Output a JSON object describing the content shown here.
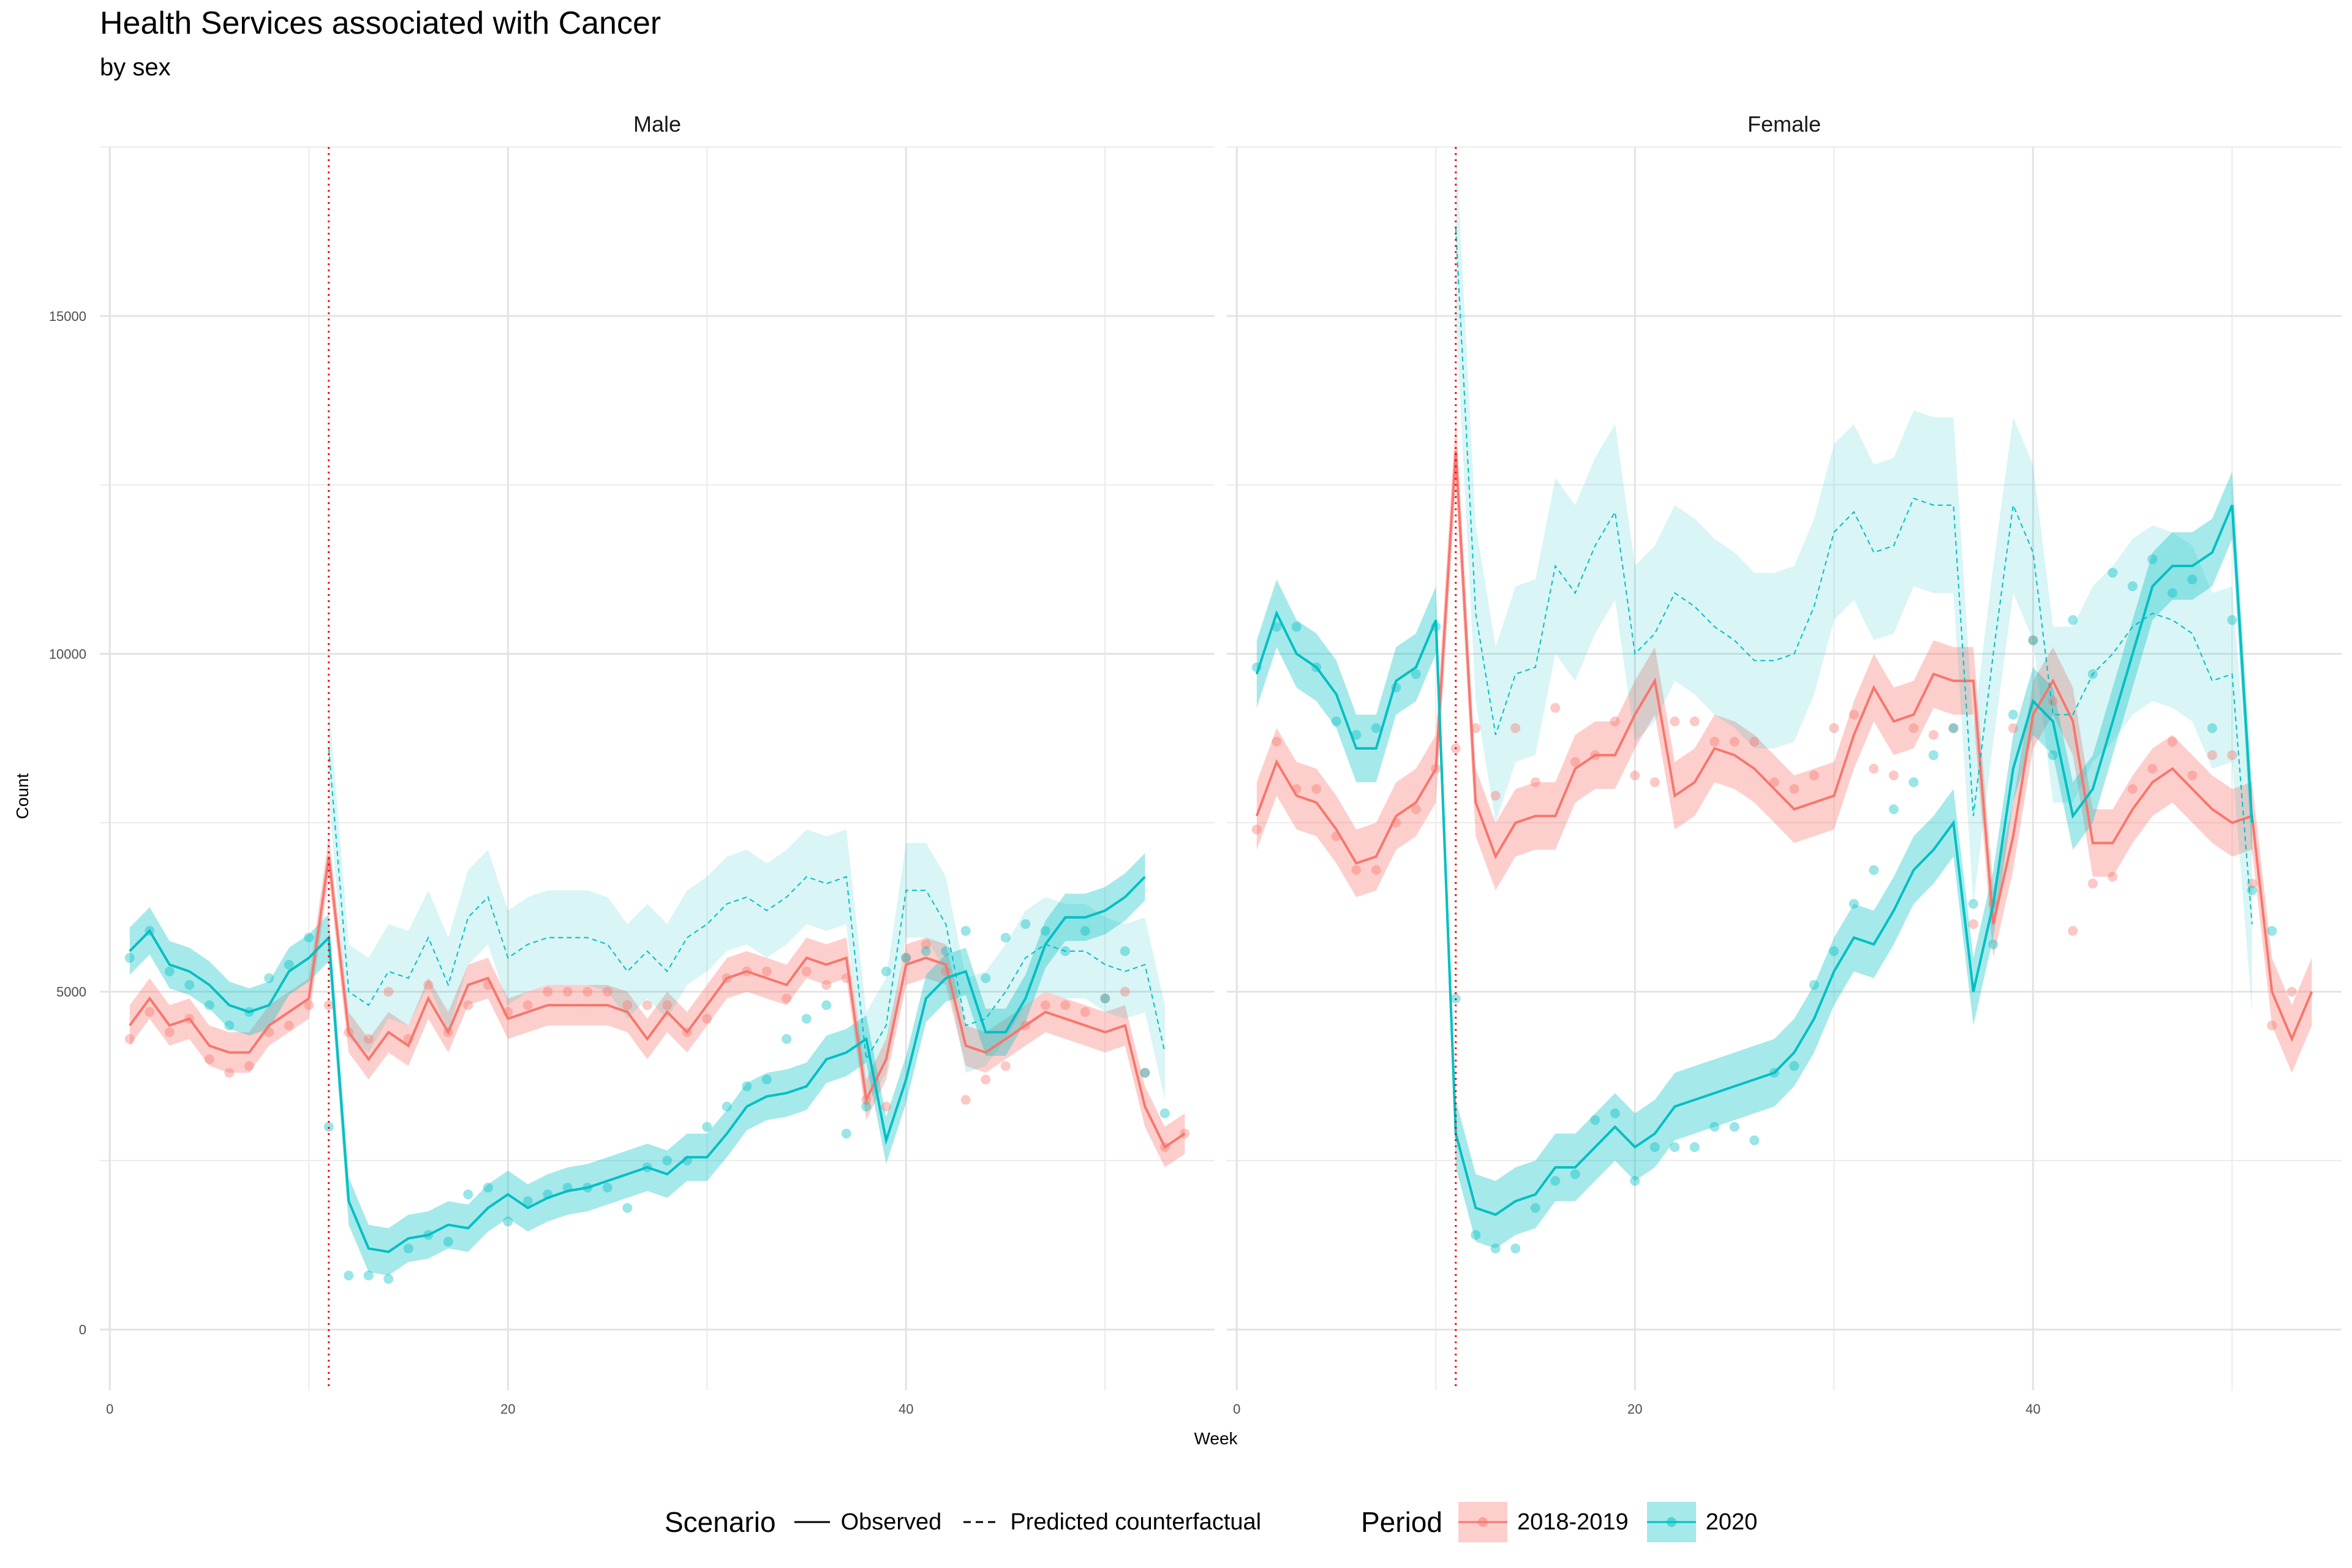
{
  "chart_data": {
    "type": "line",
    "title": "Health Services associated with Cancer",
    "subtitle": "by sex",
    "xlabel": "Week",
    "ylabel": "Count",
    "x_ticks": [
      0,
      20,
      40
    ],
    "y_ticks": [
      0,
      5000,
      10000,
      15000
    ],
    "xlim": [
      -0.5,
      55.5
    ],
    "ylim": [
      -900,
      17500
    ],
    "vline_week": 11,
    "colors": {
      "2018-2019": "#F8766D",
      "2020": "#00BFC4",
      "vline": "#FF0000"
    },
    "legend": {
      "scenario_title": "Scenario",
      "scenario_items": [
        "Observed",
        "Predicted counterfactual"
      ],
      "period_title": "Period",
      "period_items": [
        "2018-2019",
        "2020"
      ]
    },
    "panels": [
      {
        "name": "Male",
        "series": [
          {
            "name": "2018-2019",
            "scenario": "Observed",
            "x_start": 1,
            "values": [
              4500,
              4900,
              4500,
              4600,
              4200,
              4100,
              4100,
              4500,
              4700,
              4900,
              7000,
              4400,
              4000,
              4400,
              4200,
              4900,
              4400,
              5100,
              5200,
              4600,
              4700,
              4800,
              4800,
              4800,
              4800,
              4700,
              4300,
              4700,
              4400,
              4800,
              5200,
              5300,
              5200,
              5100,
              5500,
              5400,
              5500,
              3400,
              4000,
              5400,
              5500,
              5400,
              4200,
              4100,
              4300,
              4500,
              4700,
              4600,
              4500,
              4400,
              4500,
              3300,
              2700,
              2900
            ],
            "band": 300
          },
          {
            "name": "2020",
            "scenario": "Observed",
            "x_start": 1,
            "values": [
              5600,
              5900,
              5400,
              5300,
              5100,
              4800,
              4700,
              4800,
              5300,
              5500,
              5800,
              1900,
              1200,
              1150,
              1350,
              1400,
              1550,
              1500,
              1800,
              2000,
              1800,
              1950,
              2050,
              2100,
              2200,
              2300,
              2400,
              2300,
              2550,
              2550,
              2900,
              3300,
              3450,
              3500,
              3600,
              4000,
              4100,
              4300,
              2800,
              3700,
              4900,
              5200,
              5300,
              4400,
              4400,
              4900,
              5700,
              6100,
              6100,
              6200,
              6400,
              6700
            ],
            "band": 350
          },
          {
            "name": "2020",
            "scenario": "Predicted counterfactual",
            "x_start": 11,
            "values": [
              8600,
              5000,
              4800,
              5300,
              5200,
              5800,
              5100,
              6100,
              6400,
              5500,
              5700,
              5800,
              5800,
              5800,
              5700,
              5300,
              5600,
              5300,
              5800,
              6000,
              6300,
              6400,
              6200,
              6400,
              6700,
              6600,
              6700,
              4000,
              4500,
              6500,
              6500,
              6000,
              4500,
              4600,
              5000,
              5500,
              5700,
              5600,
              5600,
              5400,
              5300,
              5400,
              4100
            ],
            "band": 700
          }
        ],
        "points": [
          {
            "name": "2018-2019",
            "x_start": 1,
            "values": [
              4300,
              4700,
              4400,
              4600,
              4000,
              3800,
              3900,
              4400,
              4500,
              4800,
              4800,
              4400,
              4300,
              5000,
              4300,
              5100,
              4400,
              4800,
              5100,
              4700,
              4800,
              5000,
              5000,
              5000,
              5000,
              4800,
              4800,
              4800,
              4400,
              4600,
              5200,
              5300,
              5300,
              4900,
              5300,
              5100,
              5200,
              3400,
              3300,
              5500,
              5700,
              5300,
              3400,
              3700,
              3900,
              4500,
              4800,
              4800,
              4700,
              4900,
              5000,
              3800,
              2700,
              2900
            ]
          },
          {
            "name": "2020",
            "x_start": 1,
            "values": [
              5500,
              5900,
              5300,
              5100,
              4800,
              4500,
              4700,
              5200,
              5400,
              5800,
              3000,
              800,
              800,
              750,
              1200,
              1400,
              1300,
              2000,
              2100,
              1600,
              1900,
              2000,
              2100,
              2100,
              2100,
              1800,
              2400,
              2500,
              2500,
              3000,
              3300,
              3600,
              3700,
              4300,
              4600,
              4800,
              2900,
              3300,
              5300,
              5500,
              5600,
              5600,
              5900,
              5200,
              5800,
              6000,
              5900,
              5600,
              5900,
              4900,
              5600,
              3800,
              3200
            ]
          }
        ]
      },
      {
        "name": "Female",
        "series": [
          {
            "name": "2018-2019",
            "scenario": "Observed",
            "x_start": 1,
            "values": [
              7600,
              8400,
              7900,
              7800,
              7400,
              6900,
              7000,
              7600,
              7800,
              8300,
              13000,
              7800,
              7000,
              7500,
              7600,
              7600,
              8300,
              8500,
              8500,
              9100,
              9600,
              7900,
              8100,
              8600,
              8500,
              8300,
              8000,
              7700,
              7800,
              7900,
              8800,
              9500,
              9000,
              9100,
              9700,
              9600,
              9600,
              6000,
              7300,
              9100,
              9600,
              9000,
              7200,
              7200,
              7700,
              8100,
              8300,
              8000,
              7700,
              7500,
              7600,
              5000,
              4300,
              5000
            ],
            "band": 500
          },
          {
            "name": "2020",
            "scenario": "Observed",
            "x_start": 1,
            "values": [
              9700,
              10600,
              10000,
              9800,
              9400,
              8600,
              8600,
              9600,
              9800,
              10500,
              2900,
              1800,
              1700,
              1900,
              2000,
              2400,
              2400,
              2700,
              3000,
              2700,
              2900,
              3300,
              3400,
              3500,
              3600,
              3700,
              3800,
              4100,
              4600,
              5300,
              5800,
              5700,
              6200,
              6800,
              7100,
              7500,
              5000,
              6300,
              8300,
              9300,
              9000,
              7600,
              8000,
              9000,
              10000,
              11000,
              11300,
              11300,
              11500,
              12200,
              7500
            ],
            "band": 500
          },
          {
            "name": "2020",
            "scenario": "Predicted counterfactual",
            "x_start": 11,
            "values": [
              16300,
              10600,
              8800,
              9700,
              9800,
              11300,
              10900,
              11600,
              12100,
              10000,
              10300,
              10900,
              10700,
              10400,
              10200,
              9900,
              9900,
              10000,
              10700,
              11800,
              12100,
              11500,
              11600,
              12300,
              12200,
              12200,
              7600,
              10000,
              12200,
              11500,
              9100,
              9100,
              9700,
              10000,
              10400,
              10600,
              10500,
              10300,
              9600,
              9700,
              6000
            ],
            "band": 1300
          }
        ],
        "points": [
          {
            "name": "2018-2019",
            "x_start": 1,
            "values": [
              7400,
              8700,
              8000,
              8000,
              7300,
              6800,
              6800,
              7500,
              7700,
              8300,
              8600,
              8900,
              7900,
              8900,
              8100,
              9200,
              8400,
              8500,
              9000,
              8200,
              8100,
              9000,
              9000,
              8700,
              8700,
              8700,
              8100,
              8000,
              8200,
              8900,
              9100,
              8300,
              8200,
              8900,
              8800,
              8900,
              6000,
              6300,
              8900,
              10200,
              9300,
              5900,
              6600,
              6700,
              8000,
              8300,
              8700,
              8200,
              8500,
              8500,
              6600,
              4500,
              5000
            ]
          },
          {
            "name": "2020",
            "x_start": 1,
            "values": [
              9800,
              10400,
              10400,
              9800,
              9000,
              8800,
              8900,
              9500,
              9700,
              10400,
              4900,
              1400,
              1200,
              1200,
              1800,
              2200,
              2300,
              3100,
              3200,
              2200,
              2700,
              2700,
              2700,
              3000,
              3000,
              2800,
              3800,
              3900,
              5100,
              5600,
              6300,
              6800,
              7700,
              8100,
              8500,
              8900,
              6300,
              5700,
              9100,
              10200,
              8500,
              10500,
              9700,
              11200,
              11000,
              11400,
              10900,
              11100,
              8900,
              10500,
              6500,
              5900
            ]
          }
        ]
      }
    ]
  }
}
